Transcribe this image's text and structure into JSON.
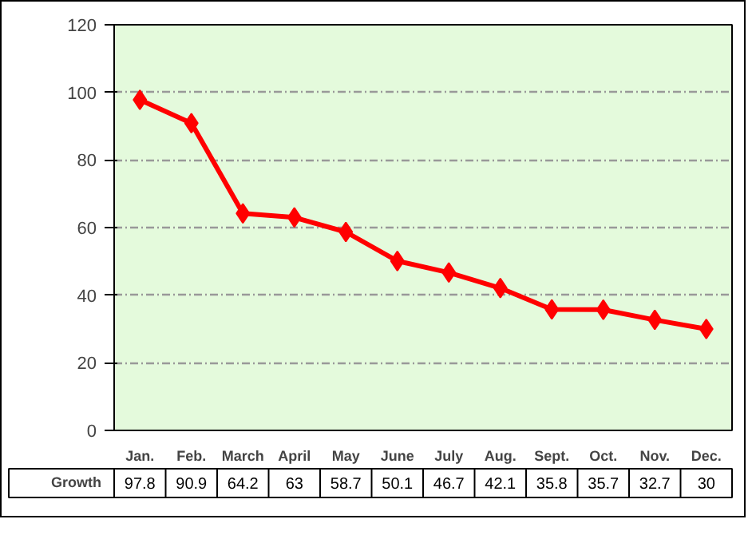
{
  "chart_data": {
    "type": "line",
    "categories": [
      "Jan.",
      "Feb.",
      "March",
      "April",
      "May",
      "June",
      "July",
      "Aug.",
      "Sept.",
      "Oct.",
      "Nov.",
      "Dec."
    ],
    "series": [
      {
        "name": "Growth",
        "color": "#ff0000",
        "values": [
          97.8,
          90.9,
          64.2,
          63,
          58.7,
          50.1,
          46.7,
          42.1,
          35.8,
          35.7,
          32.7,
          30
        ]
      }
    ],
    "ylim": [
      0,
      120
    ],
    "yticks": [
      0,
      20,
      40,
      60,
      80,
      100,
      120
    ],
    "grid": "y",
    "marker": "diamond",
    "line_style": "solid",
    "data_labels": true,
    "legend": "bottom"
  }
}
